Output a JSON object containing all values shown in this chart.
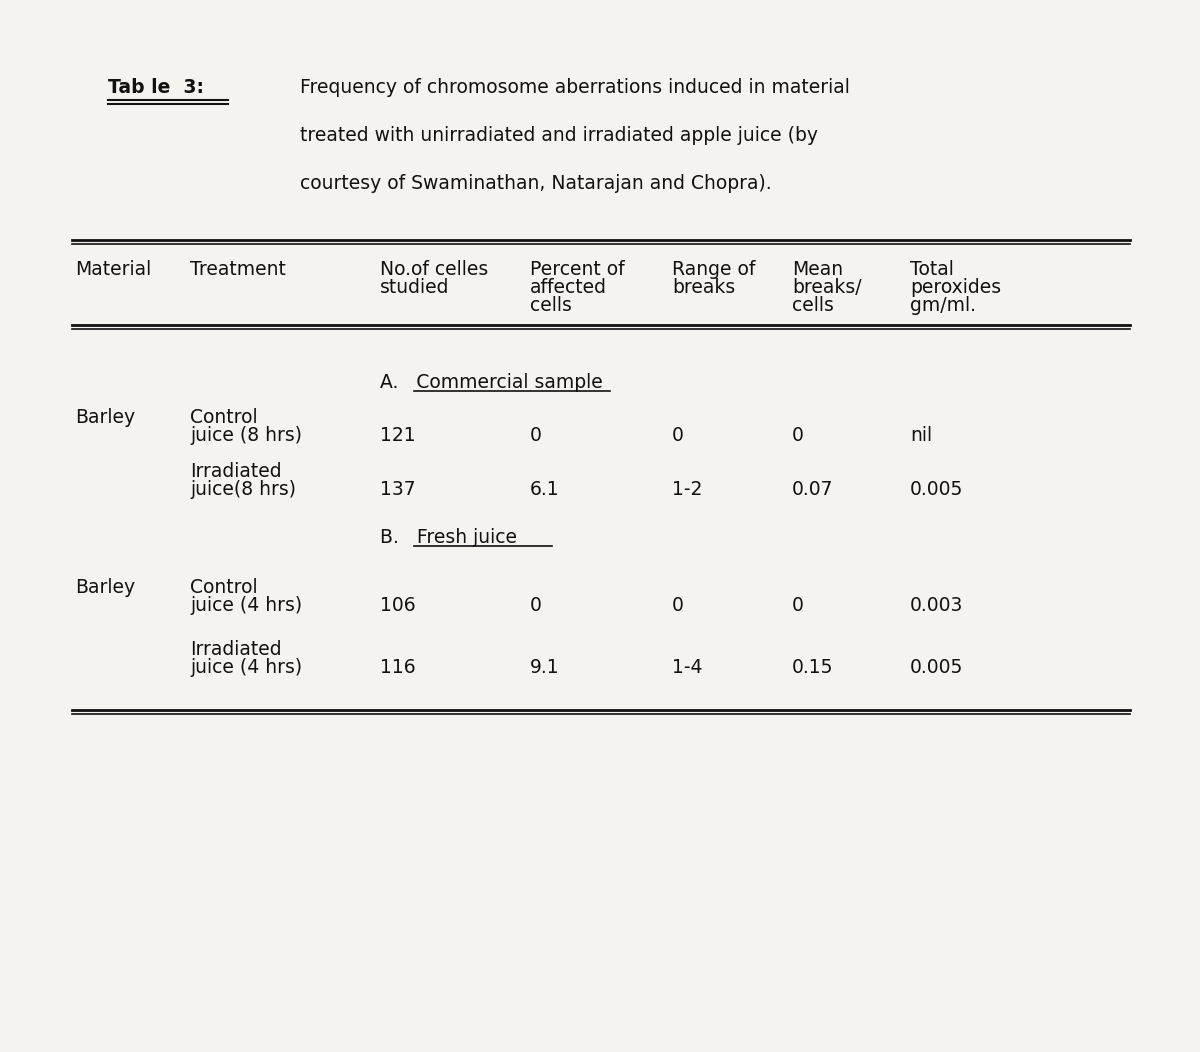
{
  "title_label": "Tab le  3:",
  "title_text_line1": "Frequency of chromosome aberrations induced in material",
  "title_text_line2": "treated with unirradiated and irradiated apple juice (by",
  "title_text_line3": "courtesy of Swaminathan, Natarajan and Chopra).",
  "col_headers_line1": [
    "Material",
    "Treatment",
    "No.of celles",
    "Percent of",
    "Range of",
    "Mean",
    "Total"
  ],
  "col_headers_line2": [
    "",
    "",
    "studied",
    "affected",
    "breaks",
    "breaks/",
    "peroxides"
  ],
  "col_headers_line3": [
    "",
    "",
    "",
    "cells",
    "",
    "cells",
    "gm/ml."
  ],
  "section_a_label": "A.   Commercial sample",
  "section_b_label": "B.   Fresh juice",
  "rows": [
    [
      "Barley",
      "Control",
      "121",
      "0",
      "0",
      "0",
      "nil"
    ],
    [
      "",
      "juice (8 hrs)",
      "",
      "",
      "",
      "",
      ""
    ],
    [
      "",
      "Irradiated",
      "137",
      "6.1",
      "1-2",
      "0.07",
      "0.005"
    ],
    [
      "",
      "juice(8 hrs)",
      "",
      "",
      "",
      "",
      ""
    ],
    [
      "Barley",
      "Control",
      "106",
      "0",
      "0",
      "0",
      "0.003"
    ],
    [
      "",
      "juice (4 hrs)",
      "",
      "",
      "",
      "",
      ""
    ],
    [
      "",
      "Irradiated",
      "116",
      "9.1",
      "1-4",
      "0.15",
      "0.005"
    ],
    [
      "",
      "juice (4 hrs)",
      "",
      "",
      "",
      "",
      ""
    ]
  ],
  "bg_color": "#f5f3f0",
  "text_color": "#111111",
  "font_family": "Courier New",
  "font_size": 13.5,
  "title_font_size": 13.5
}
